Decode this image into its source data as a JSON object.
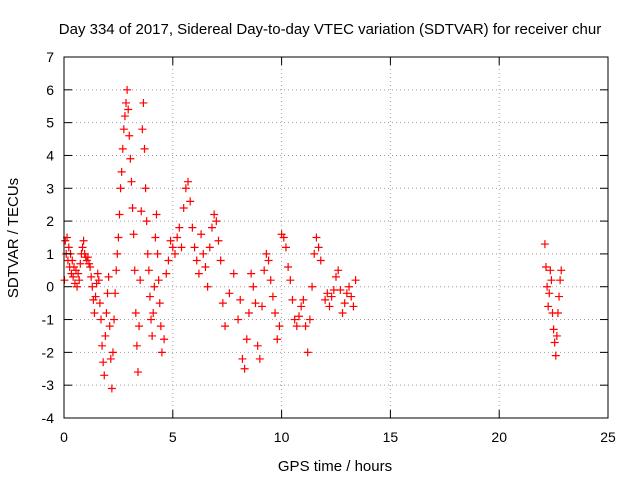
{
  "chart_data": {
    "type": "scatter",
    "title": "Day 334 of 2017, Sidereal Day-to-day VTEC variation (SDTVAR) for receiver chur",
    "xlabel": "GPS time / hours",
    "ylabel": "SDTVAR / TECUs",
    "xlim": [
      0,
      25
    ],
    "ylim": [
      -4,
      7
    ],
    "xticks": [
      0,
      5,
      10,
      15,
      20,
      25
    ],
    "yticks": [
      -4,
      -3,
      -2,
      -1,
      0,
      1,
      2,
      3,
      4,
      5,
      6,
      7
    ],
    "grid": true,
    "marker": "+",
    "color": "#ff0000",
    "series": [
      {
        "name": "SDTVAR",
        "x": [
          0.02,
          0.06,
          0.1,
          0.14,
          0.18,
          0.22,
          0.26,
          0.3,
          0.34,
          0.38,
          0.42,
          0.46,
          0.5,
          0.55,
          0.6,
          0.65,
          0.7,
          0.75,
          0.8,
          0.85,
          0.9,
          0.95,
          1.0,
          1.05,
          1.1,
          1.15,
          1.2,
          1.25,
          1.3,
          1.35,
          1.4,
          1.45,
          1.5,
          1.55,
          1.6,
          1.65,
          1.7,
          1.75,
          1.8,
          1.85,
          1.9,
          1.95,
          2.0,
          2.05,
          2.1,
          2.15,
          2.2,
          2.25,
          2.3,
          2.35,
          2.4,
          2.45,
          2.5,
          2.55,
          2.6,
          2.65,
          2.7,
          2.75,
          2.8,
          2.85,
          2.9,
          2.95,
          3.0,
          3.05,
          3.1,
          3.15,
          3.2,
          3.25,
          3.3,
          3.35,
          3.4,
          3.45,
          3.5,
          3.55,
          3.6,
          3.65,
          3.7,
          3.75,
          3.8,
          3.85,
          3.9,
          3.95,
          4.0,
          4.05,
          4.1,
          4.15,
          4.2,
          4.25,
          4.3,
          4.35,
          4.4,
          4.45,
          4.5,
          4.6,
          4.7,
          4.8,
          4.9,
          5.0,
          5.1,
          5.2,
          5.3,
          5.4,
          5.5,
          5.6,
          5.7,
          5.8,
          5.9,
          6.0,
          6.1,
          6.2,
          6.3,
          6.4,
          6.5,
          6.6,
          6.7,
          6.8,
          6.9,
          7.0,
          7.1,
          7.2,
          7.3,
          7.4,
          7.6,
          7.8,
          8.0,
          8.1,
          8.2,
          8.3,
          8.4,
          8.5,
          8.6,
          8.7,
          8.8,
          8.9,
          9.0,
          9.1,
          9.2,
          9.3,
          9.4,
          9.5,
          9.6,
          9.7,
          9.8,
          9.9,
          10.0,
          10.1,
          10.2,
          10.3,
          10.4,
          10.5,
          10.6,
          10.7,
          10.8,
          10.9,
          11.0,
          11.1,
          11.2,
          11.3,
          11.4,
          11.5,
          11.6,
          11.7,
          11.8,
          12.0,
          12.1,
          12.2,
          12.3,
          12.4,
          12.5,
          12.6,
          12.7,
          12.8,
          12.9,
          13.0,
          13.1,
          13.2,
          13.3,
          13.4,
          22.1,
          22.15,
          22.2,
          22.25,
          22.3,
          22.35,
          22.4,
          22.45,
          22.5,
          22.55,
          22.6,
          22.65,
          22.7,
          22.75,
          22.8,
          22.85
        ],
        "y": [
          0.2,
          1.4,
          1.0,
          1.5,
          0.8,
          1.2,
          0.6,
          1.0,
          0.4,
          0.8,
          0.3,
          0.6,
          0.1,
          0.5,
          0.0,
          0.4,
          0.2,
          0.7,
          1.0,
          1.2,
          1.4,
          1.0,
          0.9,
          0.8,
          0.9,
          0.7,
          0.6,
          0.3,
          0.0,
          -0.4,
          -0.8,
          -0.3,
          0.1,
          0.4,
          0.2,
          -0.5,
          -1.0,
          -1.8,
          -2.3,
          -2.7,
          -1.5,
          -0.8,
          -0.2,
          0.3,
          -1.2,
          -2.2,
          -3.1,
          -2.0,
          -1.0,
          -0.2,
          0.5,
          1.0,
          1.5,
          2.2,
          3.0,
          3.5,
          4.2,
          4.8,
          5.2,
          5.6,
          6.0,
          5.4,
          4.6,
          3.9,
          3.2,
          2.4,
          1.6,
          0.5,
          -0.8,
          -1.8,
          -2.6,
          -1.2,
          0.2,
          2.3,
          4.8,
          5.6,
          4.2,
          3.0,
          2.0,
          1.0,
          0.5,
          -0.3,
          -1.0,
          -1.5,
          -0.8,
          0.0,
          1.5,
          2.2,
          1.0,
          0.2,
          -0.5,
          -1.2,
          -2.0,
          -1.6,
          0.4,
          0.8,
          1.4,
          1.2,
          1.0,
          1.5,
          1.8,
          1.2,
          2.4,
          3.0,
          3.2,
          2.6,
          1.8,
          1.2,
          0.8,
          0.4,
          1.6,
          1.0,
          0.6,
          0.0,
          1.2,
          1.8,
          2.2,
          2.0,
          1.4,
          0.8,
          -0.5,
          -1.2,
          -0.2,
          0.4,
          -1.0,
          -0.4,
          -2.2,
          -2.5,
          -1.6,
          -0.8,
          0.4,
          0.0,
          -0.5,
          -1.8,
          -2.2,
          -0.6,
          0.5,
          1.0,
          0.8,
          0.2,
          -0.3,
          -0.8,
          -1.6,
          -1.2,
          1.6,
          1.5,
          1.2,
          0.6,
          0.2,
          -0.4,
          -1.0,
          -1.2,
          -0.9,
          -0.6,
          -0.4,
          -1.2,
          -2.0,
          -1.0,
          0.0,
          1.0,
          1.5,
          1.2,
          0.8,
          -0.4,
          -0.2,
          -0.6,
          -0.3,
          -0.1,
          0.3,
          0.5,
          -0.1,
          -0.8,
          -0.5,
          -0.2,
          0.0,
          -0.3,
          -0.6,
          0.2,
          1.3,
          0.6,
          0.0,
          -0.6,
          -0.2,
          0.5,
          0.2,
          -0.8,
          -1.3,
          -1.7,
          -2.1,
          -1.5,
          -0.8,
          -0.3,
          0.2,
          0.5
        ]
      }
    ]
  }
}
